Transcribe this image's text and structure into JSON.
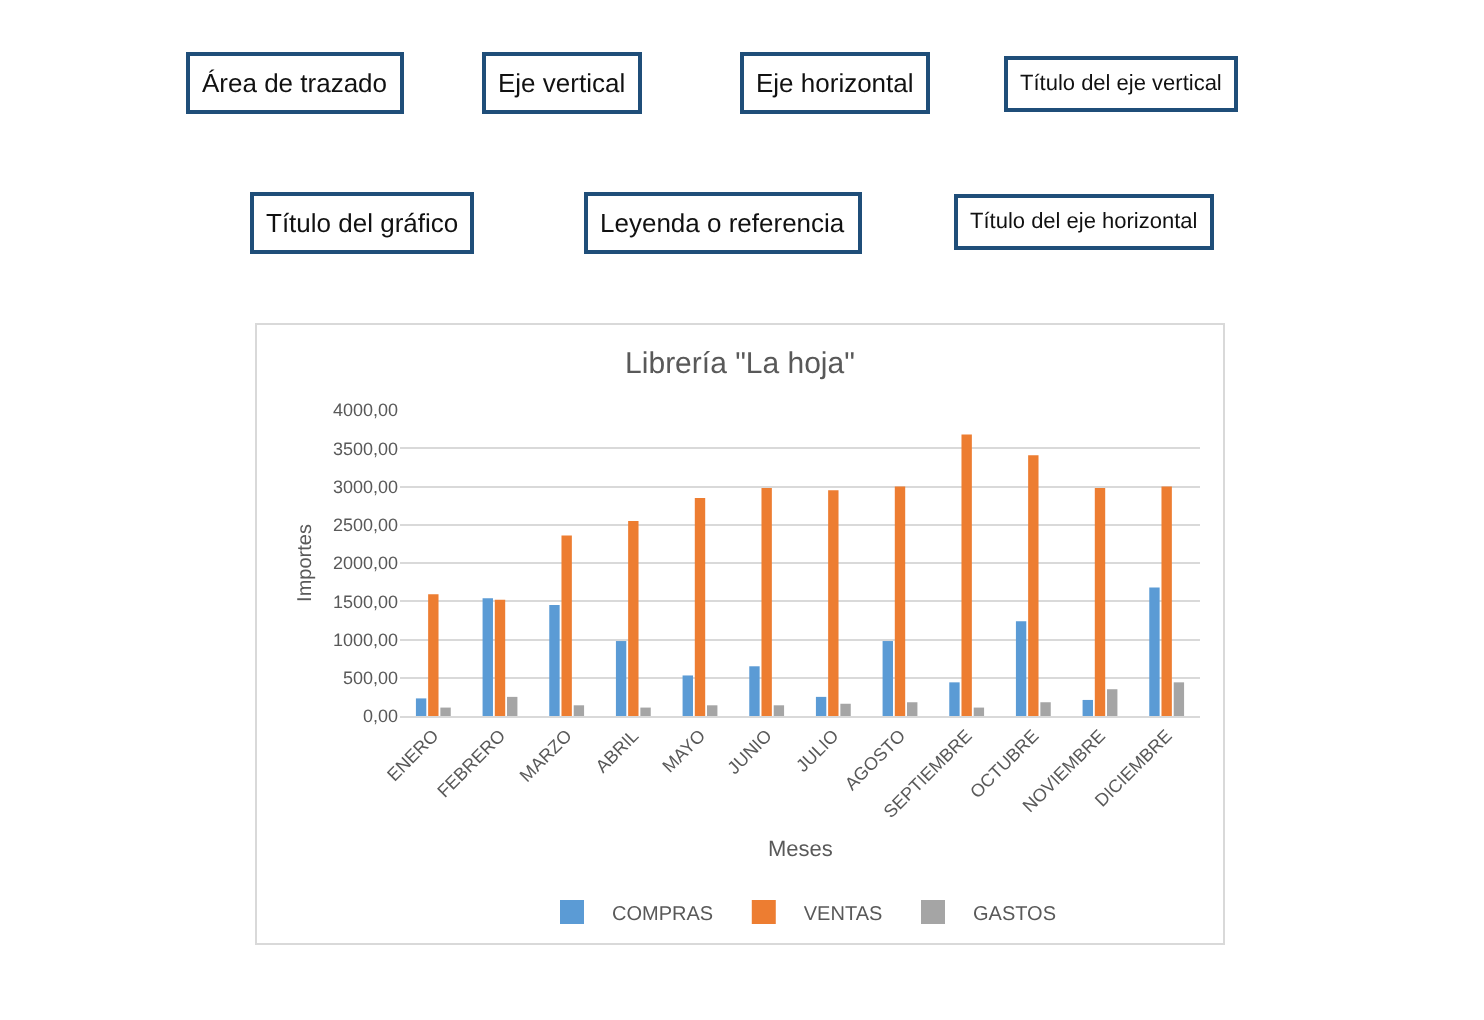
{
  "chart_data": {
    "type": "bar",
    "title": "Librería \"La hoja\"",
    "xlabel": "Meses",
    "ylabel": "Importes",
    "categories": [
      "ENERO",
      "FEBRERO",
      "MARZO",
      "ABRIL",
      "MAYO",
      "JUNIO",
      "JULIO",
      "AGOSTO",
      "SEPTIEMBRE",
      "OCTUBRE",
      "NOVIEMBRE",
      "DICIEMBRE"
    ],
    "series": [
      {
        "name": "COMPRAS",
        "color": "#5b9bd5",
        "values": [
          230,
          1540,
          1450,
          980,
          530,
          650,
          250,
          980,
          440,
          1240,
          210,
          1680
        ]
      },
      {
        "name": "VENTAS",
        "color": "#ed7d31",
        "values": [
          1590,
          1520,
          2360,
          2550,
          2850,
          2980,
          2950,
          3000,
          3680,
          3410,
          2980,
          3000
        ]
      },
      {
        "name": "GASTOS",
        "color": "#a5a5a5",
        "values": [
          110,
          250,
          140,
          110,
          140,
          140,
          160,
          180,
          110,
          180,
          350,
          440
        ]
      }
    ],
    "ylim": [
      0,
      4000
    ],
    "yticks": [
      {
        "value": 0,
        "label": "0,00"
      },
      {
        "value": 500,
        "label": "500,00"
      },
      {
        "value": 1000,
        "label": "1000,00"
      },
      {
        "value": 1500,
        "label": "1500,00"
      },
      {
        "value": 2000,
        "label": "2000,00"
      },
      {
        "value": 2500,
        "label": "2500,00"
      },
      {
        "value": 3000,
        "label": "3000,00"
      },
      {
        "value": 3500,
        "label": "3500,00"
      },
      {
        "value": 4000,
        "label": "4000,00"
      }
    ],
    "grid": "y",
    "legend": "bottom",
    "annotations": [
      "Área de trazado",
      "Eje vertical",
      "Eje horizontal",
      "Título del eje vertical",
      "Título del gráfico",
      "Leyenda o referencia",
      "Título del eje horizontal"
    ]
  }
}
